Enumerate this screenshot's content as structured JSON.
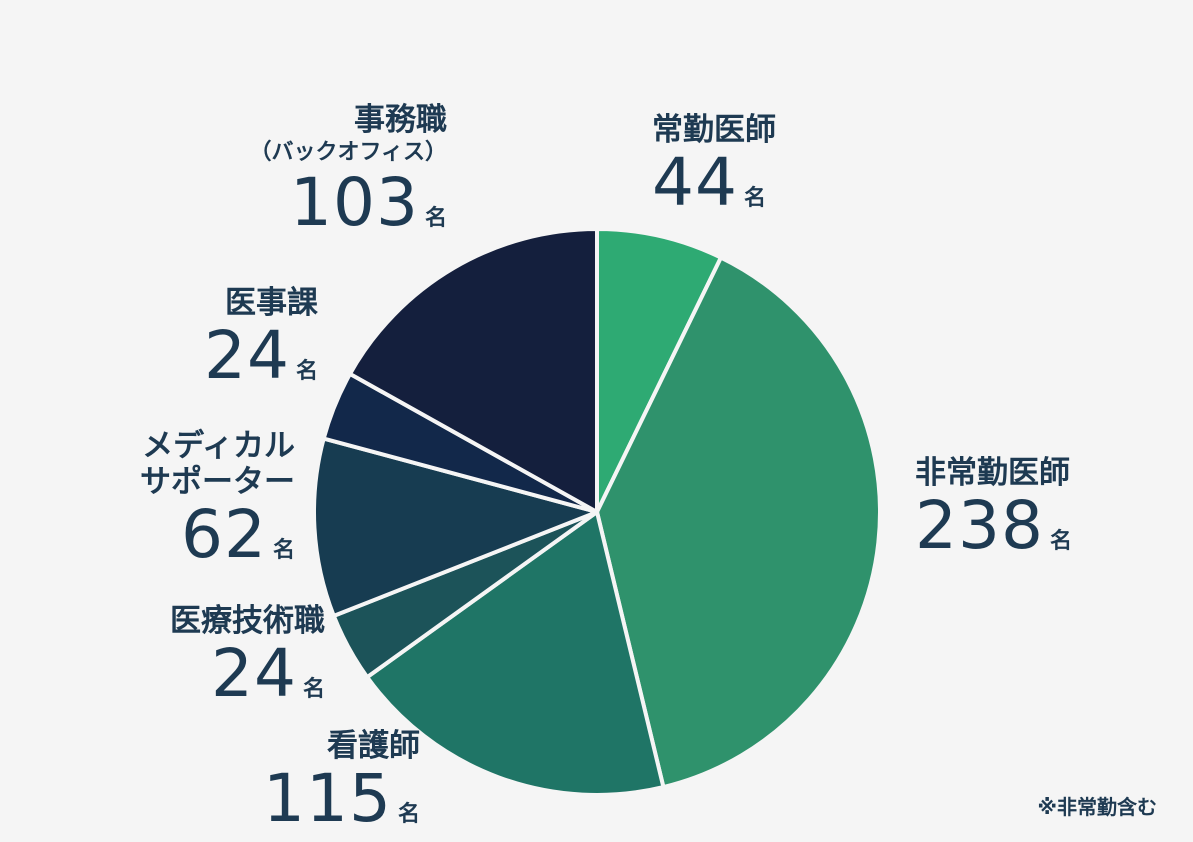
{
  "chart_data": {
    "type": "pie",
    "unit": "名",
    "slices": [
      {
        "label": "常勤医師",
        "sub": "",
        "value": 44,
        "color": "#2eaa73"
      },
      {
        "label": "非常勤医師",
        "sub": "",
        "value": 238,
        "color": "#2f926c"
      },
      {
        "label": "看護師",
        "sub": "",
        "value": 115,
        "color": "#1f7566"
      },
      {
        "label": "医療技術職",
        "sub": "",
        "value": 24,
        "color": "#1c5359"
      },
      {
        "label": "メディカル\nサポーター",
        "sub": "",
        "value": 62,
        "color": "#173c51"
      },
      {
        "label": "医事課",
        "sub": "",
        "value": 24,
        "color": "#12284a"
      },
      {
        "label": "事務職",
        "sub": "（バックオフィス）",
        "value": 103,
        "color": "#141f3d"
      }
    ],
    "note": "※非常勤含む"
  }
}
